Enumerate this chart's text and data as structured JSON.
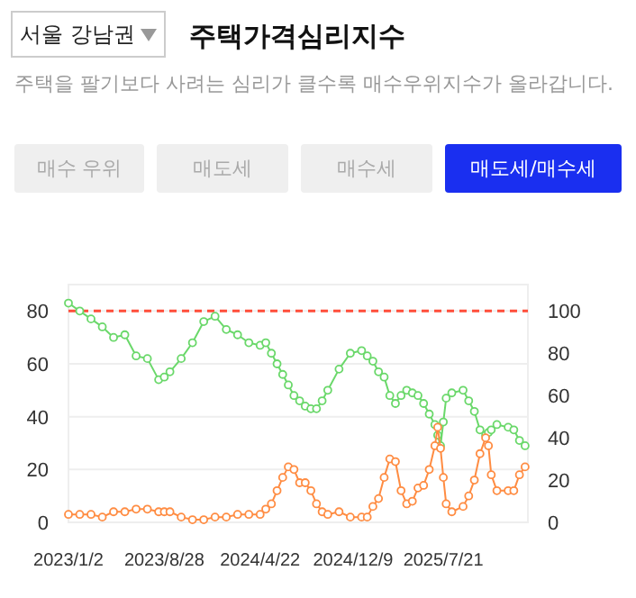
{
  "chart_data": {
    "type": "line",
    "title": "주택가격심리지수",
    "subtitle": "주택을 팔기보다 사려는 심리가 클수록 매수우위지수가 올라갑니다.",
    "annotations": [
      "서울 강남권",
      "매수 우위",
      "매도세",
      "매수세",
      "매도세/매수세"
    ],
    "x": [
      "2023-01-02",
      "2023-01-30",
      "2023-02-27",
      "2023-03-27",
      "2023-04-24",
      "2023-05-22",
      "2023-06-19",
      "2023-07-17",
      "2023-08-14",
      "2023-08-28",
      "2023-09-11",
      "2023-10-09",
      "2023-11-06",
      "2023-12-04",
      "2024-01-01",
      "2024-01-29",
      "2024-02-26",
      "2024-03-25",
      "2024-04-22",
      "2024-05-06",
      "2024-05-20",
      "2024-06-03",
      "2024-06-17",
      "2024-07-01",
      "2024-07-15",
      "2024-07-29",
      "2024-08-12",
      "2024-08-26",
      "2024-09-09",
      "2024-09-23",
      "2024-10-07",
      "2024-11-04",
      "2024-12-02",
      "2024-12-30",
      "2025-01-13",
      "2025-01-27",
      "2025-02-10",
      "2025-02-24",
      "2025-03-10",
      "2025-03-24",
      "2025-04-07",
      "2025-04-21",
      "2025-05-05",
      "2025-05-19",
      "2025-06-02",
      "2025-06-16",
      "2025-06-30",
      "2025-07-07",
      "2025-07-14",
      "2025-07-21",
      "2025-07-28",
      "2025-08-11",
      "2025-09-08",
      "2025-09-22",
      "2025-10-06",
      "2025-10-20",
      "2025-11-03",
      "2025-11-10",
      "2025-11-17",
      "2025-12-01",
      "2025-12-29",
      "2026-01-12",
      "2026-01-26",
      "2026-02-09"
    ],
    "series": [
      {
        "color": "#6ad86a",
        "values": [
          83,
          80,
          77,
          74,
          70,
          71,
          63,
          62,
          54,
          55,
          57,
          62,
          68,
          76,
          78,
          73,
          71,
          68,
          67,
          68,
          64,
          60,
          56,
          52,
          48,
          46,
          44,
          43,
          43,
          46,
          50,
          58,
          64,
          65,
          63,
          61,
          57,
          55,
          48,
          45,
          48,
          50,
          49,
          48,
          45,
          41,
          37,
          33,
          29,
          38,
          47,
          49,
          50,
          46,
          42,
          35,
          33,
          34,
          35,
          37,
          36,
          35,
          31,
          29
        ]
      },
      {
        "color": "#ff8c42",
        "values": [
          3,
          3,
          3,
          2,
          4,
          4,
          5,
          5,
          4,
          4,
          4,
          2,
          1,
          1,
          2,
          2,
          3,
          3,
          3,
          5,
          7,
          12,
          17,
          21,
          20,
          15,
          15,
          12,
          7,
          4,
          3,
          4,
          2,
          2,
          2,
          6,
          9,
          17,
          24,
          23,
          12,
          7,
          8,
          13,
          14,
          20,
          29,
          36,
          28,
          17,
          7,
          4,
          6,
          10,
          16,
          26,
          32,
          29,
          18,
          12,
          12,
          12,
          18,
          21
        ]
      }
    ],
    "xlim": [
      "2023-01-02",
      "2026-02-16"
    ],
    "xticks": [
      {
        "value": "2023-01-02",
        "label": "2023/1/2"
      },
      {
        "value": "2023-08-28",
        "label": "2023/8/28"
      },
      {
        "value": "2024-04-22",
        "label": "2024/4/22"
      },
      {
        "value": "2024-12-09",
        "label": "2024/12/9"
      },
      {
        "value": "2025-07-21",
        "label": "2025/7/21"
      }
    ],
    "ylim": [
      0,
      90
    ],
    "yticks": [
      0,
      20,
      40,
      60,
      80
    ],
    "y2lim": [
      0,
      112.5
    ],
    "y2ticks": [
      0,
      20,
      40,
      60,
      80,
      100
    ],
    "ref_lines": [
      {
        "axis": "y2",
        "value": 100,
        "color": "#ff4d3a",
        "line_style": "dashed"
      }
    ],
    "grid": "y",
    "marker": "circle"
  }
}
